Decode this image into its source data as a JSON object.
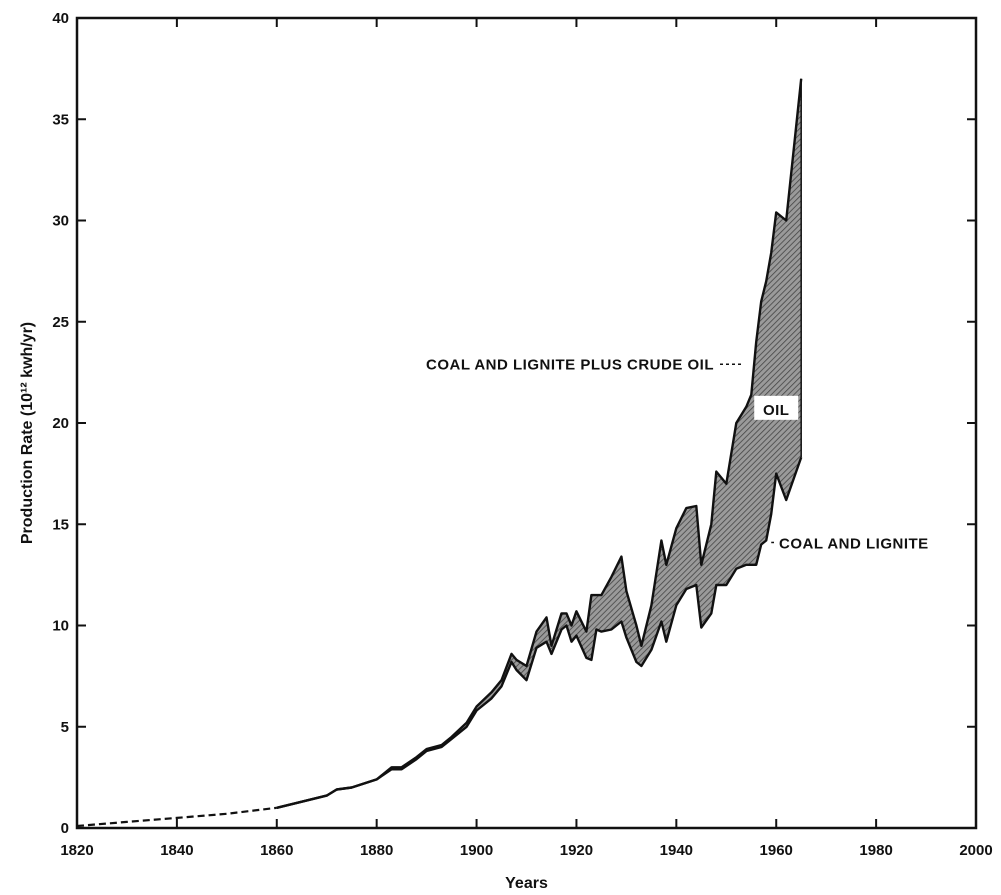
{
  "chart_data": {
    "type": "area",
    "title": "",
    "xlabel": "Years",
    "ylabel": "Production Rate (10¹² kwh/yr)",
    "xlim": [
      1820,
      2000
    ],
    "ylim": [
      0,
      40
    ],
    "x_ticks": [
      "1820",
      "1840",
      "1860",
      "1880",
      "1900",
      "1920",
      "1940",
      "1960",
      "1980",
      "2000"
    ],
    "y_ticks": [
      "0",
      "5",
      "10",
      "15",
      "20",
      "25",
      "30",
      "35",
      "40"
    ],
    "grid": false,
    "series": [
      {
        "name": "COAL AND LIGNITE",
        "x": [
          1820,
          1830,
          1840,
          1850,
          1860,
          1865,
          1870,
          1872,
          1875,
          1880,
          1883,
          1885,
          1888,
          1890,
          1893,
          1895,
          1898,
          1900,
          1903,
          1905,
          1907,
          1908,
          1910,
          1912,
          1914,
          1915,
          1917,
          1918,
          1919,
          1920,
          1922,
          1923,
          1924,
          1925,
          1927,
          1929,
          1930,
          1932,
          1933,
          1935,
          1937,
          1938,
          1940,
          1942,
          1944,
          1945,
          1947,
          1948,
          1950,
          1952,
          1954,
          1955,
          1956,
          1957,
          1958,
          1959,
          1960,
          1962,
          1965
        ],
        "values": [
          0.1,
          0.3,
          0.5,
          0.7,
          1.0,
          1.3,
          1.6,
          1.9,
          2.0,
          2.4,
          2.9,
          2.9,
          3.4,
          3.8,
          4.0,
          4.4,
          5.0,
          5.8,
          6.4,
          7.0,
          8.2,
          7.8,
          7.3,
          8.9,
          9.2,
          8.6,
          9.8,
          10.0,
          9.2,
          9.5,
          8.4,
          8.3,
          9.8,
          9.7,
          9.8,
          10.2,
          9.4,
          8.2,
          8.0,
          8.8,
          10.2,
          9.2,
          11.0,
          11.8,
          12.0,
          9.9,
          10.6,
          12.0,
          12.0,
          12.8,
          13.0,
          13.0,
          13.0,
          14.0,
          14.2,
          15.5,
          17.5,
          16.2,
          18.3
        ]
      },
      {
        "name": "COAL AND LIGNITE PLUS CRUDE OIL",
        "x": [
          1820,
          1830,
          1840,
          1850,
          1860,
          1865,
          1870,
          1872,
          1875,
          1880,
          1883,
          1885,
          1888,
          1890,
          1893,
          1895,
          1898,
          1900,
          1903,
          1905,
          1907,
          1908,
          1910,
          1912,
          1914,
          1915,
          1917,
          1918,
          1919,
          1920,
          1922,
          1923,
          1924,
          1925,
          1927,
          1929,
          1930,
          1932,
          1933,
          1935,
          1937,
          1938,
          1940,
          1942,
          1944,
          1945,
          1947,
          1948,
          1950,
          1952,
          1954,
          1955,
          1956,
          1957,
          1958,
          1959,
          1960,
          1962,
          1965
        ],
        "values": [
          0.1,
          0.3,
          0.5,
          0.7,
          1.0,
          1.3,
          1.6,
          1.9,
          2.0,
          2.4,
          3.0,
          3.0,
          3.5,
          3.9,
          4.1,
          4.5,
          5.2,
          6.0,
          6.7,
          7.3,
          8.6,
          8.3,
          8.0,
          9.7,
          10.4,
          9.0,
          10.6,
          10.6,
          10.0,
          10.7,
          9.7,
          11.5,
          11.5,
          11.5,
          12.4,
          13.4,
          11.7,
          10.0,
          9.0,
          11.0,
          14.2,
          13.0,
          14.8,
          15.8,
          15.9,
          13.0,
          15.0,
          17.6,
          17.0,
          20.0,
          20.8,
          21.4,
          24.0,
          26.0,
          27.0,
          28.4,
          30.4,
          30.0,
          37.0
        ]
      }
    ],
    "annotations": [
      {
        "text": "COAL AND LIGNITE PLUS CRUDE OIL",
        "x": 1953,
        "y": 22.9
      },
      {
        "text": "OIL",
        "x": 1960,
        "y": 20.7
      },
      {
        "text": "COAL AND LIGNITE",
        "x": 1964,
        "y": 14.1
      }
    ],
    "colors": {
      "ink": "#111111",
      "oil_fill": "#8c8c8c"
    }
  }
}
